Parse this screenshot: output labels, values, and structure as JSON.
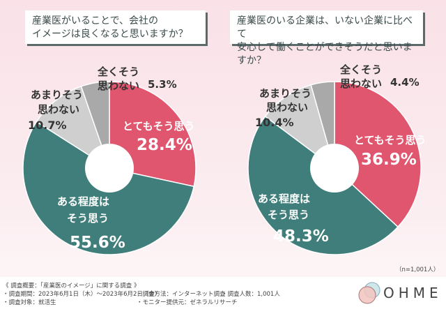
{
  "chart_data": [
    {
      "type": "pie",
      "donut": true,
      "title": "産業医がいることで、会社の\nイメージは良くなると思いますか？",
      "categories": [
        "とてもそう思う",
        "ある程度はそう思う",
        "あまりそう思わない",
        "全くそう思わない"
      ],
      "values": [
        28.4,
        55.6,
        10.7,
        5.3
      ],
      "value_labels": [
        "28.4%",
        "55.6%",
        "10.7%",
        "5.3%"
      ],
      "label_lines": [
        [
          "とてもそう思う"
        ],
        [
          "ある程度は",
          "そう思う"
        ],
        [
          "あまりそう",
          "思わない"
        ],
        [
          "全くそう",
          "思わない"
        ]
      ],
      "colors": [
        "#e0566f",
        "#3f7e7b",
        "#cfcfcf",
        "#a9a9a9"
      ]
    },
    {
      "type": "pie",
      "donut": true,
      "title": "産業医のいる企業は、いない企業に比べて\n安心して働くことができそうだと思いますか？",
      "categories": [
        "とてもそう思う",
        "ある程度はそう思う",
        "あまりそう思わない",
        "全くそう思わない"
      ],
      "values": [
        36.9,
        48.3,
        10.4,
        4.4
      ],
      "value_labels": [
        "36.9%",
        "48.3%",
        "10.4%",
        "4.4%"
      ],
      "label_lines": [
        [
          "とてもそう思う"
        ],
        [
          "ある程度は",
          "そう思う"
        ],
        [
          "あまりそう",
          "思わない"
        ],
        [
          "全くそう",
          "思わない"
        ]
      ],
      "colors": [
        "#e0566f",
        "#3f7e7b",
        "#cfcfcf",
        "#a9a9a9"
      ]
    }
  ],
  "titles": {
    "left_1": "産業医がいることで、会社の",
    "left_2": "イメージは良くなると思いますか？",
    "right_1": "産業医のいる企業は、いない企業に比べて",
    "right_2": "安心して働くことができそうだと思いますか？"
  },
  "n_note": "（n=1,001人）",
  "footer": {
    "heading": "《 調査概要：「産業医のイメージ」に関する調査 》",
    "period": "・調査期間：2023年6月1日（木）～2023年6月2日（金）",
    "target": "・調査対象：就活生",
    "method": "・調査方法：インターネット調査",
    "provider": "・モニター提供元：ゼネラルリサーチ",
    "count": "・調査人数：1,001人"
  },
  "logo": "OHME"
}
